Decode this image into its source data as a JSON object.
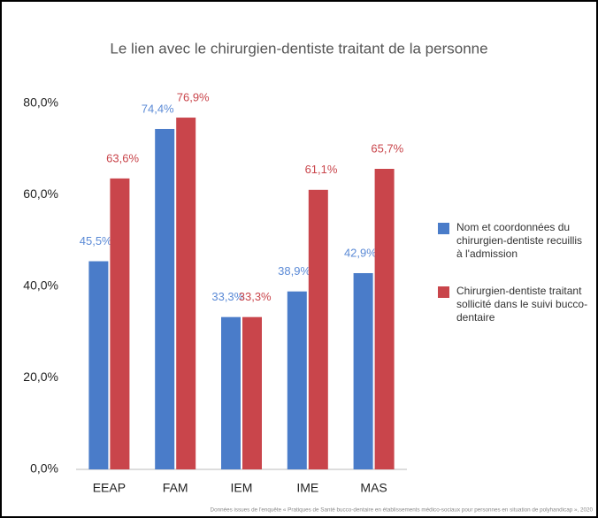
{
  "chart_data": {
    "type": "bar",
    "title": "Le lien avec le chirurgien-dentiste traitant de la personne",
    "categories": [
      "EEAP",
      "FAM",
      "IEM",
      "IME",
      "MAS"
    ],
    "series": [
      {
        "name": "Nom et coordonnées du chirurgien-dentiste recuillis à l'admission",
        "color": "#4a7cc9",
        "label_color": "#5b8ad6",
        "values": [
          45.5,
          74.4,
          33.3,
          38.9,
          42.9
        ],
        "value_labels": [
          "45,5%",
          "74,4%",
          "33,3%",
          "38,9%",
          "42,9%"
        ]
      },
      {
        "name": "Chirurgien-dentiste traitant sollicité dans le suivi bucco-dentaire",
        "color": "#c9454b",
        "label_color": "#c9454b",
        "values": [
          63.6,
          76.9,
          33.3,
          61.1,
          65.7
        ],
        "value_labels": [
          "63,6%",
          "76,9%",
          "33,3%",
          "61,1%",
          "65,7%"
        ]
      }
    ],
    "ylim": [
      0,
      80
    ],
    "yticks": [
      {
        "value": 0,
        "label": "0,0%"
      },
      {
        "value": 20,
        "label": "20,0%"
      },
      {
        "value": 40,
        "label": "40,0%"
      },
      {
        "value": 60,
        "label": "60,0%"
      },
      {
        "value": 80,
        "label": "80,0%"
      }
    ],
    "grid": false,
    "legend": "right",
    "source": "Données issues de l'enquête « Pratiques de Santé bucco-dentaire en établissements médico-sociaux pour personnes en situation de polyhandicap », 2020"
  }
}
